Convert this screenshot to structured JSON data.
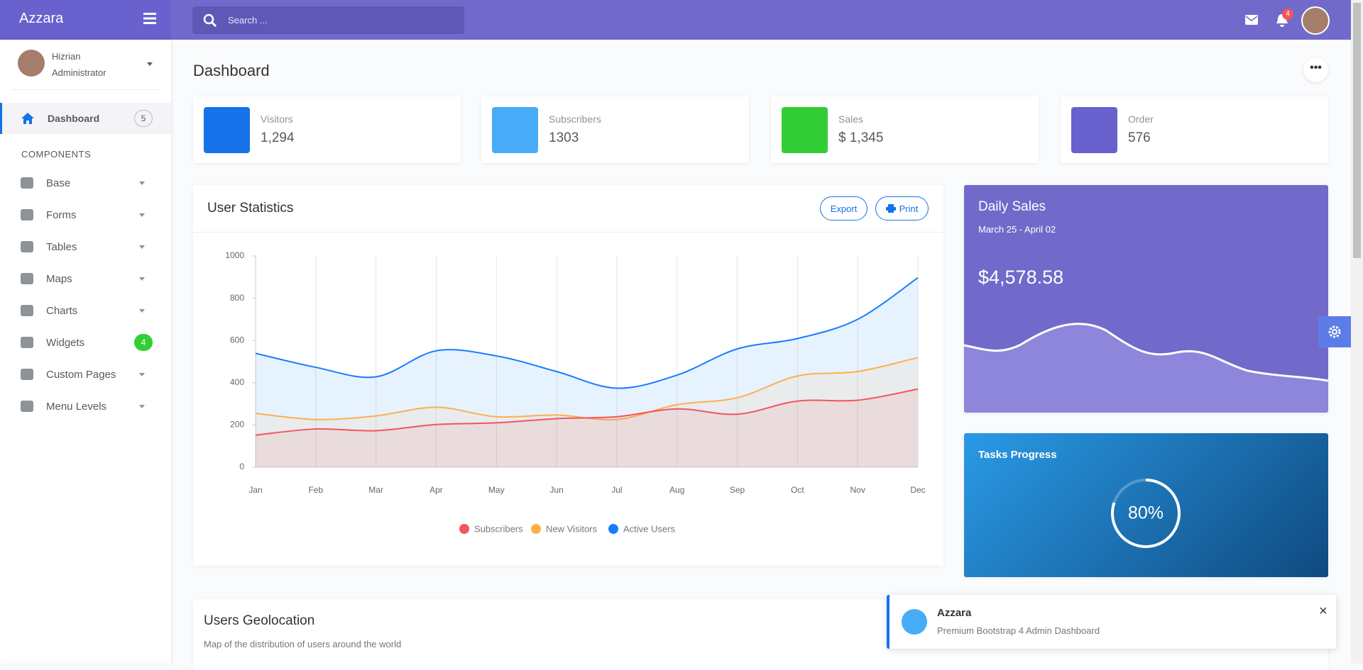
{
  "brand": "Azzara",
  "search_placeholder": "Search ...",
  "notification_count": 4,
  "user": {
    "name": "Hizrian",
    "role": "Administrator"
  },
  "nav": {
    "dashboard": {
      "label": "Dashboard",
      "badge": 5
    },
    "section": "COMPONENTS",
    "items": [
      {
        "label": "Base"
      },
      {
        "label": "Forms"
      },
      {
        "label": "Tables"
      },
      {
        "label": "Maps"
      },
      {
        "label": "Charts"
      },
      {
        "label": "Widgets",
        "badge": 4
      },
      {
        "label": "Custom Pages"
      },
      {
        "label": "Menu Levels"
      }
    ]
  },
  "page_title": "Dashboard",
  "stats": [
    {
      "label": "Visitors",
      "value": "1,294"
    },
    {
      "label": "Subscribers",
      "value": "1303"
    },
    {
      "label": "Sales",
      "value": "$ 1,345"
    },
    {
      "label": "Order",
      "value": "576"
    }
  ],
  "chart_buttons": [
    "Export",
    "Print"
  ],
  "chart_data": {
    "type": "line",
    "title": "User Statistics",
    "categories": [
      "Jan",
      "Feb",
      "Mar",
      "Apr",
      "May",
      "Jun",
      "Jul",
      "Aug",
      "Sep",
      "Oct",
      "Nov",
      "Dec"
    ],
    "series": [
      {
        "name": "Subscribers",
        "color": "#f3545d",
        "values": [
          152,
          181,
          173,
          202,
          210,
          230,
          239,
          276,
          251,
          313,
          317,
          370
        ]
      },
      {
        "name": "New Visitors",
        "color": "#fdaf4b",
        "values": [
          255,
          226,
          243,
          284,
          239,
          247,
          226,
          296,
          329,
          432,
          453,
          519
        ]
      },
      {
        "name": "Active Users",
        "color": "#177dff",
        "values": [
          539,
          473,
          428,
          551,
          527,
          453,
          374,
          436,
          560,
          609,
          700,
          897
        ]
      }
    ],
    "ylim": [
      0,
      1000
    ],
    "yticks": [
      0,
      200,
      400,
      600,
      800,
      1000
    ],
    "grid": true,
    "legend": "bottom"
  },
  "daily_sales": {
    "title": "Daily Sales",
    "date_range": "March 25 - April 02",
    "amount": "$4,578.58"
  },
  "tasks_progress": {
    "title": "Tasks Progress",
    "value": 80,
    "label": "80%"
  },
  "geolocation": {
    "title": "Users Geolocation",
    "subtitle": "Map of the distribution of users around the world"
  },
  "toast": {
    "title": "Azzara",
    "message": "Premium Bootstrap 4 Admin Dashboard"
  }
}
